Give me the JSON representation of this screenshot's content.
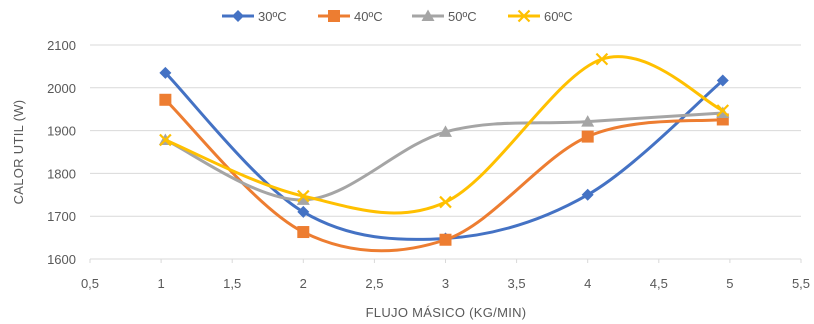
{
  "chart_data": {
    "type": "line",
    "title": "",
    "xlabel": "FLUJO MÁSICO (KG/MIN)",
    "ylabel": "CALOR UTIL (W)",
    "xlim": [
      0.5,
      5.5
    ],
    "ylim": [
      1600,
      2100
    ],
    "x_ticks": [
      "0,5",
      "1",
      "1,5",
      "2",
      "2,5",
      "3",
      "3,5",
      "4",
      "4,5",
      "5",
      "5,5"
    ],
    "y_ticks": [
      "1600",
      "1700",
      "1800",
      "1900",
      "2000",
      "2100"
    ],
    "grid": "horizontal",
    "legend_position": "top",
    "smooth": true,
    "series": [
      {
        "name": "30ºC",
        "color": "#4472C4",
        "marker": "diamond",
        "points": [
          [
            1.03,
            2035
          ],
          [
            2.0,
            1710
          ],
          [
            3.0,
            1648
          ],
          [
            4.0,
            1750
          ],
          [
            4.95,
            2017
          ]
        ]
      },
      {
        "name": "40ºC",
        "color": "#ED7D31",
        "marker": "square",
        "points": [
          [
            1.03,
            1972
          ],
          [
            2.0,
            1663
          ],
          [
            3.0,
            1645
          ],
          [
            4.0,
            1886
          ],
          [
            4.95,
            1926
          ]
        ]
      },
      {
        "name": "50ºC",
        "color": "#A5A5A5",
        "marker": "triangle",
        "points": [
          [
            1.03,
            1878
          ],
          [
            2.0,
            1738
          ],
          [
            3.0,
            1897
          ],
          [
            4.0,
            1921
          ],
          [
            4.95,
            1941
          ]
        ]
      },
      {
        "name": "60ºC",
        "color": "#FFC000",
        "marker": "x",
        "points": [
          [
            1.03,
            1878
          ],
          [
            2.0,
            1747
          ],
          [
            3.0,
            1733
          ],
          [
            4.1,
            2067
          ],
          [
            4.95,
            1947
          ]
        ]
      }
    ]
  }
}
